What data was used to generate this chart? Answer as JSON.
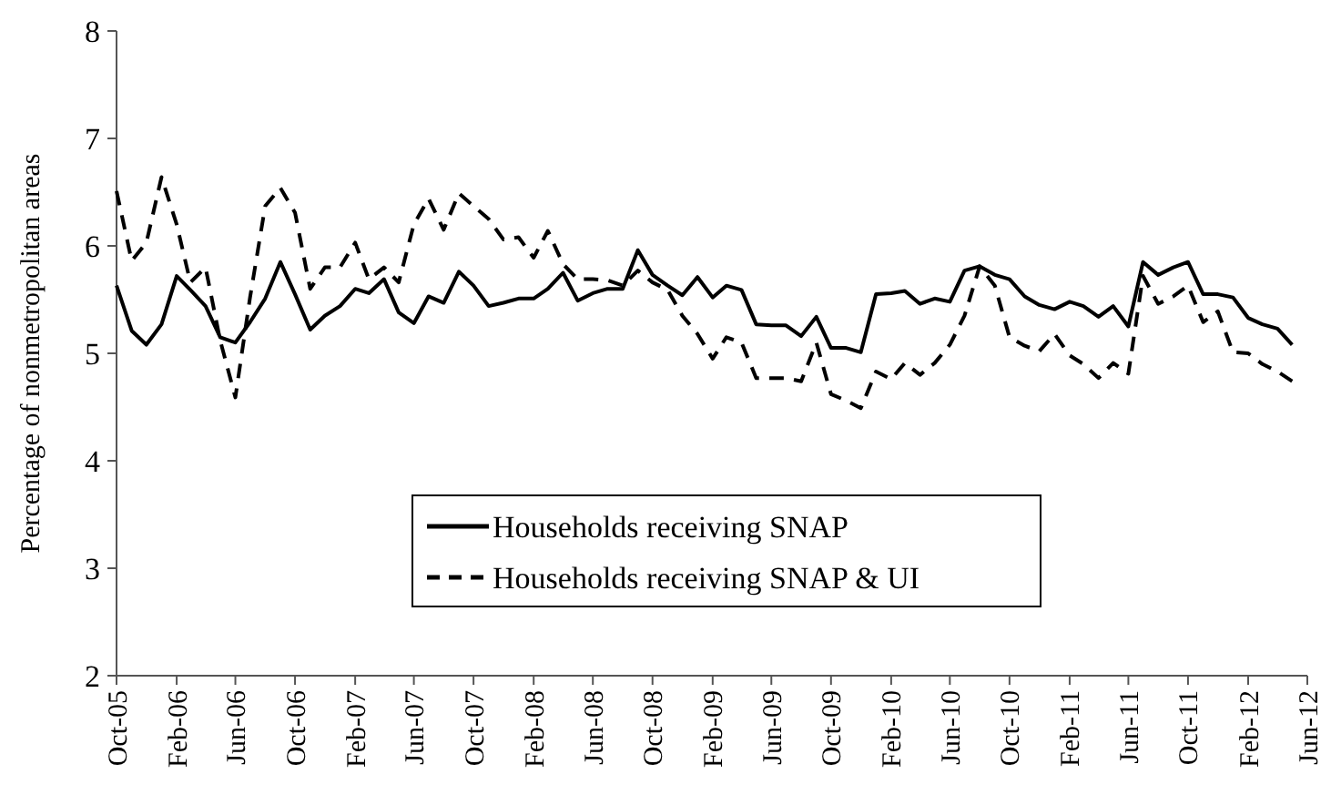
{
  "chart_data": {
    "type": "line",
    "ylabel": "Percentage of nonmetropolitan areas",
    "x": [
      "2005-10",
      "2005-11",
      "2005-12",
      "2006-01",
      "2006-02",
      "2006-03",
      "2006-04",
      "2006-05",
      "2006-06",
      "2006-07",
      "2006-08",
      "2006-09",
      "2006-10",
      "2006-11",
      "2006-12",
      "2007-01",
      "2007-02",
      "2007-03",
      "2007-04",
      "2007-05",
      "2007-06",
      "2007-07",
      "2007-08",
      "2007-09",
      "2007-10",
      "2007-11",
      "2007-12",
      "2008-01",
      "2008-02",
      "2008-03",
      "2008-04",
      "2008-05",
      "2008-06",
      "2008-07",
      "2008-08",
      "2008-09",
      "2008-10",
      "2008-11",
      "2008-12",
      "2009-01",
      "2009-02",
      "2009-03",
      "2009-04",
      "2009-05",
      "2009-06",
      "2009-07",
      "2009-08",
      "2009-09",
      "2009-10",
      "2009-11",
      "2009-12",
      "2010-01",
      "2010-02",
      "2010-03",
      "2010-04",
      "2010-05",
      "2010-06",
      "2010-07",
      "2010-08",
      "2010-09",
      "2010-10",
      "2010-11",
      "2010-12",
      "2011-01",
      "2011-02",
      "2011-03",
      "2011-04",
      "2011-05",
      "2011-06",
      "2011-07",
      "2011-08",
      "2011-09",
      "2011-10",
      "2011-11",
      "2011-12",
      "2012-01",
      "2012-02",
      "2012-03",
      "2012-04",
      "2012-05"
    ],
    "series": [
      {
        "name": "Households receiving SNAP",
        "color": "#000000",
        "line_style": "solid",
        "values": [
          5.63,
          5.21,
          5.08,
          5.27,
          5.72,
          5.59,
          5.44,
          5.15,
          5.1,
          5.29,
          5.51,
          5.85,
          5.55,
          5.22,
          5.35,
          5.44,
          5.6,
          5.56,
          5.69,
          5.38,
          5.28,
          5.53,
          5.47,
          5.76,
          5.63,
          5.44,
          5.47,
          5.51,
          5.51,
          5.6,
          5.75,
          5.49,
          5.56,
          5.6,
          5.6,
          5.96,
          5.73,
          5.63,
          5.54,
          5.71,
          5.52,
          5.63,
          5.59,
          5.27,
          5.26,
          5.26,
          5.16,
          5.34,
          5.05,
          5.05,
          5.01,
          5.55,
          5.56,
          5.58,
          5.46,
          5.51,
          5.48,
          5.77,
          5.81,
          5.73,
          5.69,
          5.53,
          5.45,
          5.41,
          5.48,
          5.44,
          5.34,
          5.44,
          5.25,
          5.85,
          5.73,
          5.8,
          5.85,
          5.55,
          5.55,
          5.52,
          5.33,
          5.27,
          5.23,
          5.08
        ]
      },
      {
        "name": "Households receiving SNAP & UI",
        "color": "#000000",
        "line_style": "dashed",
        "values": [
          6.51,
          5.86,
          6.03,
          6.64,
          6.2,
          5.66,
          5.8,
          5.12,
          4.59,
          5.52,
          6.37,
          6.54,
          6.31,
          5.6,
          5.8,
          5.8,
          6.03,
          5.69,
          5.8,
          5.66,
          6.2,
          6.44,
          6.15,
          6.49,
          6.37,
          6.25,
          6.06,
          6.08,
          5.89,
          6.14,
          5.83,
          5.69,
          5.69,
          5.68,
          5.63,
          5.77,
          5.66,
          5.59,
          5.35,
          5.18,
          4.95,
          5.15,
          5.1,
          4.77,
          4.77,
          4.77,
          4.74,
          5.1,
          4.62,
          4.56,
          4.49,
          4.83,
          4.76,
          4.91,
          4.8,
          4.91,
          5.08,
          5.35,
          5.81,
          5.63,
          5.15,
          5.07,
          5.02,
          5.18,
          4.98,
          4.9,
          4.77,
          4.91,
          4.81,
          5.72,
          5.46,
          5.53,
          5.63,
          5.29,
          5.39,
          5.01,
          5,
          4.9,
          4.83,
          4.74
        ]
      }
    ],
    "xlim": [
      "2005-10",
      "2012-06"
    ],
    "xticks": [
      {
        "value": "2005-10",
        "label": "Oct-05"
      },
      {
        "value": "2006-02",
        "label": "Feb-06"
      },
      {
        "value": "2006-06",
        "label": "Jun-06"
      },
      {
        "value": "2006-10",
        "label": "Oct-06"
      },
      {
        "value": "2007-02",
        "label": "Feb-07"
      },
      {
        "value": "2007-06",
        "label": "Jun-07"
      },
      {
        "value": "2007-10",
        "label": "Oct-07"
      },
      {
        "value": "2008-02",
        "label": "Feb-08"
      },
      {
        "value": "2008-06",
        "label": "Jun-08"
      },
      {
        "value": "2008-10",
        "label": "Oct-08"
      },
      {
        "value": "2009-02",
        "label": "Feb-09"
      },
      {
        "value": "2009-06",
        "label": "Jun-09"
      },
      {
        "value": "2009-10",
        "label": "Oct-09"
      },
      {
        "value": "2010-02",
        "label": "Feb-10"
      },
      {
        "value": "2010-06",
        "label": "Jun-10"
      },
      {
        "value": "2010-10",
        "label": "Oct-10"
      },
      {
        "value": "2011-02",
        "label": "Feb-11"
      },
      {
        "value": "2011-06",
        "label": "Jun-11"
      },
      {
        "value": "2011-10",
        "label": "Oct-11"
      },
      {
        "value": "2012-02",
        "label": "Feb-12"
      },
      {
        "value": "2012-06",
        "label": "Jun-12"
      }
    ],
    "ylim": [
      2,
      8
    ],
    "yticks": [
      2,
      3,
      4,
      5,
      6,
      7,
      8
    ],
    "legend": "bottom",
    "marker": "none"
  }
}
